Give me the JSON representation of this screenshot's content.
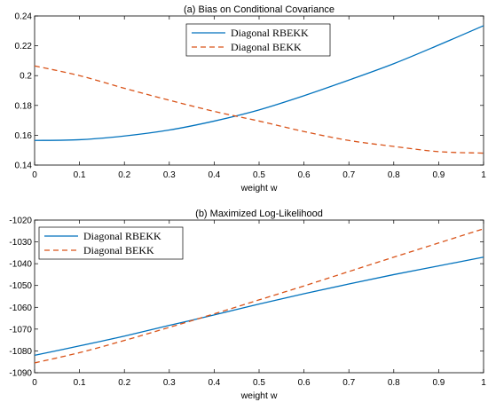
{
  "colors": {
    "rbekk": "#0072BD",
    "bekk": "#D95319",
    "axis": "#000000"
  },
  "chart_data": [
    {
      "type": "line",
      "title": "(a) Bias on Conditional Covariance",
      "xlabel": "weight w",
      "ylabel": "",
      "xlim": [
        0,
        1
      ],
      "ylim": [
        0.14,
        0.24
      ],
      "xticks": [
        0,
        0.1,
        0.2,
        0.3,
        0.4,
        0.5,
        0.6,
        0.7,
        0.8,
        0.9,
        1
      ],
      "yticks": [
        0.14,
        0.16,
        0.18,
        0.2,
        0.22,
        0.24
      ],
      "xtick_labels": [
        "0",
        "0.1",
        "0.2",
        "0.3",
        "0.4",
        "0.5",
        "0.6",
        "0.7",
        "0.8",
        "0.9",
        "1"
      ],
      "ytick_labels": [
        "0.14",
        "0.16",
        "0.18",
        "0.2",
        "0.22",
        "0.24"
      ],
      "grid": false,
      "legend_position": "top-center",
      "x": [
        0,
        0.1,
        0.2,
        0.3,
        0.4,
        0.5,
        0.6,
        0.7,
        0.8,
        0.9,
        1
      ],
      "series": [
        {
          "name": "Diagonal RBEKK",
          "style": "solid",
          "values": [
            0.1565,
            0.157,
            0.1595,
            0.1635,
            0.1695,
            0.177,
            0.1865,
            0.197,
            0.208,
            0.2205,
            0.2335
          ]
        },
        {
          "name": "Diagonal BEKK",
          "style": "dashed",
          "values": [
            0.2065,
            0.2,
            0.1915,
            0.1835,
            0.176,
            0.1695,
            0.1625,
            0.1565,
            0.1525,
            0.149,
            0.148
          ]
        }
      ]
    },
    {
      "type": "line",
      "title": "(b) Maximized Log-Likelihood",
      "xlabel": "weight w",
      "ylabel": "",
      "xlim": [
        0,
        1
      ],
      "ylim": [
        -1090,
        -1020
      ],
      "xticks": [
        0,
        0.1,
        0.2,
        0.3,
        0.4,
        0.5,
        0.6,
        0.7,
        0.8,
        0.9,
        1
      ],
      "yticks": [
        -1090,
        -1080,
        -1070,
        -1060,
        -1050,
        -1040,
        -1030,
        -1020
      ],
      "xtick_labels": [
        "0",
        "0.1",
        "0.2",
        "0.3",
        "0.4",
        "0.5",
        "0.6",
        "0.7",
        "0.8",
        "0.9",
        "1"
      ],
      "ytick_labels": [
        "-1090",
        "-1080",
        "-1070",
        "-1060",
        "-1050",
        "-1040",
        "-1030",
        "-1020"
      ],
      "grid": false,
      "legend_position": "top-left",
      "x": [
        0,
        0.1,
        0.2,
        0.3,
        0.4,
        0.5,
        0.6,
        0.7,
        0.8,
        0.9,
        1
      ],
      "series": [
        {
          "name": "Diagonal RBEKK",
          "style": "solid",
          "values": [
            -1082,
            -1077.7,
            -1073.2,
            -1068.3,
            -1063.5,
            -1058.5,
            -1053.8,
            -1049.3,
            -1045,
            -1041,
            -1037
          ]
        },
        {
          "name": "Diagonal BEKK",
          "style": "dashed",
          "values": [
            -1085.5,
            -1080.8,
            -1075.2,
            -1069.2,
            -1063,
            -1056.6,
            -1050.2,
            -1043.6,
            -1037,
            -1030.5,
            -1024
          ]
        }
      ]
    }
  ]
}
